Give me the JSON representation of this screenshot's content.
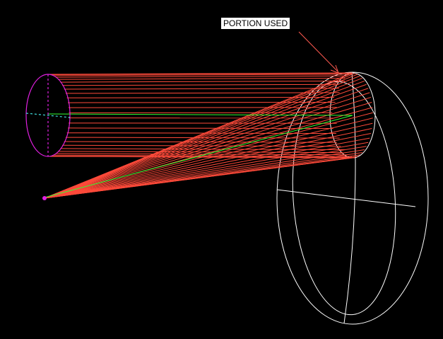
{
  "annotation": {
    "label": "PORTION USED"
  },
  "colors": {
    "background": "#000000",
    "rays": "#ff4a3a",
    "chief_ray": "#33ff33",
    "aperture": "#e020e0",
    "reflector": "#ffffff",
    "leader": "#ff5a50"
  },
  "ray_count": 26
}
